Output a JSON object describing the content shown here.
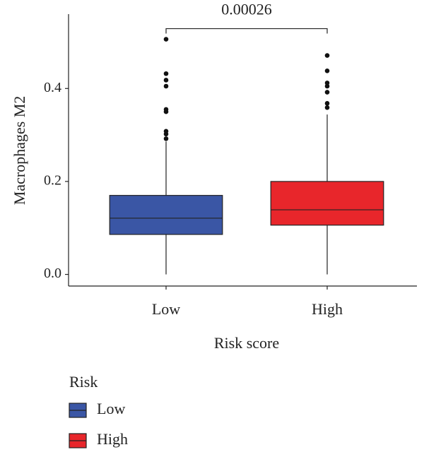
{
  "chart_data": {
    "type": "box",
    "y_label": "Macrophages M2",
    "x_label": "Risk score",
    "categories": [
      "Low",
      "High"
    ],
    "colors": [
      "#3a56a5",
      "#e8262b"
    ],
    "boxes": [
      {
        "whisker_low": 0.0,
        "q1": 0.086,
        "median": 0.121,
        "q3": 0.17,
        "whisker_high": 0.286,
        "outliers": [
          0.292,
          0.302,
          0.308,
          0.35,
          0.355,
          0.405,
          0.418,
          0.432,
          0.506
        ]
      },
      {
        "whisker_low": 0.0,
        "q1": 0.106,
        "median": 0.139,
        "q3": 0.2,
        "whisker_high": 0.344,
        "outliers": [
          0.359,
          0.368,
          0.392,
          0.405,
          0.412,
          0.438,
          0.471
        ]
      }
    ],
    "annotation": "0.00026",
    "ylim": [
      -0.025,
      0.56
    ],
    "yticks": [
      {
        "value": 0,
        "label": "0.0"
      },
      0.2,
      0.4
    ],
    "legend": {
      "title": "Risk"
    }
  }
}
